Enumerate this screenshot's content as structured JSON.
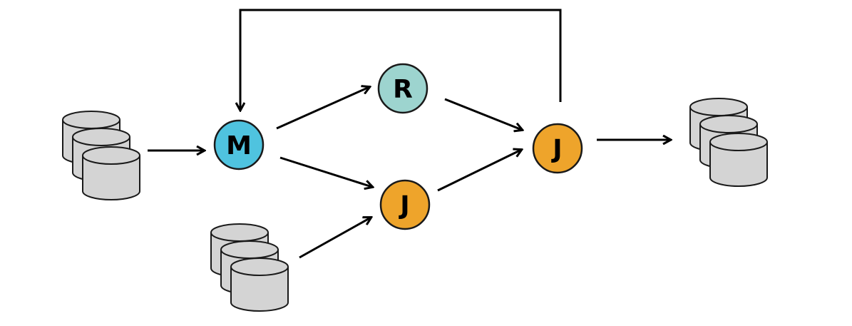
{
  "nodes": {
    "map": {
      "label": "M",
      "fill": "#4fc3df"
    },
    "reduce": {
      "label": "R",
      "fill": "#9dd4cf"
    },
    "join1": {
      "label": "J",
      "fill": "#eea42b"
    },
    "join2": {
      "label": "J",
      "fill": "#eea42b"
    }
  },
  "colors": {
    "stroke": "#000000",
    "cylinder_fill": "#d4d4d4",
    "cylinder_stroke": "#1a1a1a"
  },
  "icons": {
    "source_a": "database-stack-icon",
    "source_b": "database-stack-icon",
    "sink": "database-stack-icon"
  }
}
